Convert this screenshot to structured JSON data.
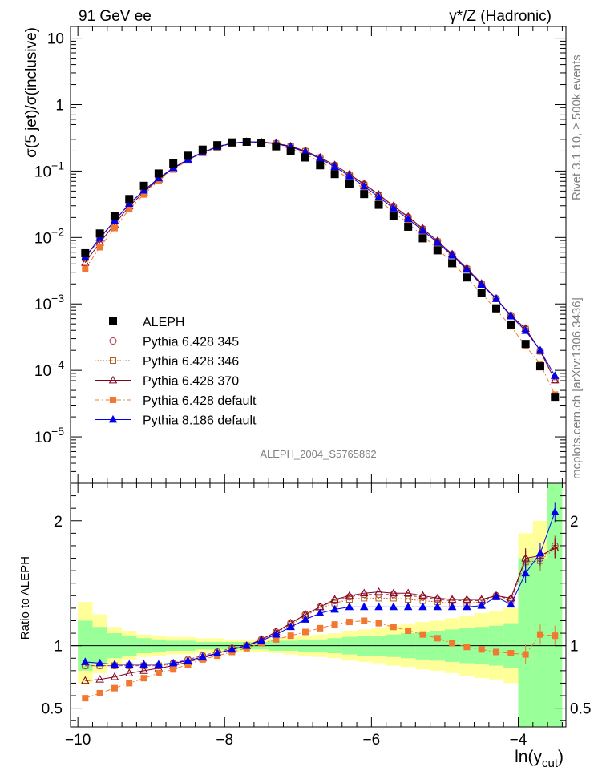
{
  "header": {
    "left_label": "91 GeV ee",
    "right_label": "γ*/Z (Hadronic)"
  },
  "side": {
    "rivet": "Rivet 3.1.10, ≥ 500k events",
    "mcplots": "mcplots.cern.ch [arXiv:1306.3436]"
  },
  "analysis_id": "ALEPH_2004_S5765862",
  "legend": [
    {
      "name": "ALEPH",
      "color": "#000000",
      "marker": "square-filled",
      "line": "none"
    },
    {
      "name": "Pythia 6.428 345",
      "color": "#b03040",
      "marker": "circle-open",
      "line": "dashed"
    },
    {
      "name": "Pythia 6.428 346",
      "color": "#b06020",
      "marker": "square-open",
      "line": "dotted"
    },
    {
      "name": "Pythia 6.428 370",
      "color": "#800020",
      "marker": "triangle-open",
      "line": "solid"
    },
    {
      "name": "Pythia 6.428 default",
      "color": "#f07830",
      "marker": "square-filled",
      "line": "dashdot"
    },
    {
      "name": "Pythia 8.186 default",
      "color": "#0000ee",
      "marker": "triangle-filled",
      "line": "solid"
    }
  ],
  "chart_data": {
    "type": "line",
    "xlabel": "ln(y",
    "xlabel_sub": "cut",
    "xlabel_close": ")",
    "ylabel_main": "σ(5 jet)/σ(inclusive)",
    "ylabel_ratio": "Ratio to ALEPH",
    "xlim": [
      -10.1,
      -3.35
    ],
    "ylim_main_log": [
      2e-06,
      15
    ],
    "ylim_ratio": [
      0.35,
      2.3
    ],
    "x_ticks": [
      -10,
      -8,
      -6,
      -4
    ],
    "x_tick_labels": [
      "−10",
      "−8",
      "−6",
      "−4"
    ],
    "main_y_ticks": [
      10,
      1,
      0.1,
      0.01,
      0.001,
      0.0001,
      1e-05
    ],
    "main_y_tick_labels": [
      {
        "base": "10",
        "exp": ""
      },
      {
        "base": "1",
        "exp": ""
      },
      {
        "base": "10",
        "exp": "−1"
      },
      {
        "base": "10",
        "exp": "−2"
      },
      {
        "base": "10",
        "exp": "−3"
      },
      {
        "base": "10",
        "exp": "−4"
      },
      {
        "base": "10",
        "exp": "−5"
      }
    ],
    "ratio_y_ticks": [
      0.5,
      1,
      2
    ],
    "ratio_y_tick_labels": [
      "0.5",
      "1",
      "2"
    ],
    "x": [
      -9.9,
      -9.7,
      -9.5,
      -9.3,
      -9.1,
      -8.9,
      -8.7,
      -8.5,
      -8.3,
      -8.1,
      -7.9,
      -7.7,
      -7.5,
      -7.3,
      -7.1,
      -6.9,
      -6.7,
      -6.5,
      -6.3,
      -6.1,
      -5.9,
      -5.7,
      -5.5,
      -5.3,
      -5.1,
      -4.9,
      -4.7,
      -4.5,
      -4.3,
      -4.1,
      -3.9,
      -3.7,
      -3.5
    ],
    "aleph": [
      0.0058,
      0.0115,
      0.021,
      0.038,
      0.06,
      0.092,
      0.13,
      0.17,
      0.21,
      0.245,
      0.27,
      0.275,
      0.26,
      0.235,
      0.2,
      0.16,
      0.122,
      0.09,
      0.064,
      0.045,
      0.031,
      0.021,
      0.0145,
      0.0097,
      0.0064,
      0.0041,
      0.0025,
      0.00148,
      0.00086,
      0.00049,
      0.00025,
      0.000115,
      4e-05
    ],
    "aleph_err_rel": [
      0.35,
      0.22,
      0.12,
      0.1,
      0.08,
      0.06,
      0.05,
      0.04,
      0.04,
      0.03,
      0.03,
      0.03,
      0.03,
      0.03,
      0.04,
      0.04,
      0.05,
      0.05,
      0.06,
      0.06,
      0.07,
      0.08,
      0.1,
      0.12,
      0.14,
      0.16,
      0.18,
      0.18,
      0.2,
      0.22,
      1.0,
      1.2,
      1.5
    ],
    "ratios": [
      {
        "name": "Pythia 6.428 345",
        "values": [
          0.84,
          0.84,
          0.84,
          0.84,
          0.84,
          0.84,
          0.86,
          0.89,
          0.92,
          0.95,
          0.98,
          1.0,
          1.05,
          1.11,
          1.18,
          1.25,
          1.31,
          1.36,
          1.39,
          1.41,
          1.41,
          1.41,
          1.4,
          1.39,
          1.37,
          1.36,
          1.36,
          1.36,
          1.4,
          1.37,
          1.69,
          1.7,
          1.8
        ]
      },
      {
        "name": "Pythia 6.428 346",
        "values": [
          0.84,
          0.84,
          0.84,
          0.84,
          0.84,
          0.84,
          0.85,
          0.88,
          0.91,
          0.94,
          0.97,
          1.0,
          1.04,
          1.1,
          1.17,
          1.24,
          1.3,
          1.34,
          1.37,
          1.38,
          1.38,
          1.38,
          1.37,
          1.36,
          1.35,
          1.34,
          1.34,
          1.35,
          1.39,
          1.36,
          1.67,
          1.68,
          1.78
        ]
      },
      {
        "name": "Pythia 6.428 370",
        "values": [
          0.72,
          0.73,
          0.75,
          0.78,
          0.8,
          0.82,
          0.84,
          0.87,
          0.9,
          0.94,
          0.97,
          1.0,
          1.05,
          1.11,
          1.18,
          1.25,
          1.31,
          1.37,
          1.4,
          1.42,
          1.43,
          1.42,
          1.42,
          1.4,
          1.38,
          1.37,
          1.37,
          1.37,
          1.4,
          1.38,
          1.7,
          1.72,
          1.78
        ]
      },
      {
        "name": "Pythia 6.428 default",
        "values": [
          0.58,
          0.62,
          0.66,
          0.7,
          0.74,
          0.78,
          0.81,
          0.85,
          0.89,
          0.92,
          0.95,
          0.98,
          1.02,
          1.05,
          1.08,
          1.11,
          1.14,
          1.17,
          1.19,
          1.2,
          1.18,
          1.15,
          1.12,
          1.09,
          1.06,
          1.02,
          0.99,
          0.97,
          0.95,
          0.94,
          0.93,
          1.09,
          1.08
        ]
      },
      {
        "name": "Pythia 8.186 default",
        "values": [
          0.87,
          0.86,
          0.85,
          0.85,
          0.85,
          0.85,
          0.86,
          0.88,
          0.91,
          0.94,
          0.97,
          1.0,
          1.04,
          1.09,
          1.15,
          1.21,
          1.26,
          1.29,
          1.31,
          1.31,
          1.31,
          1.31,
          1.31,
          1.31,
          1.31,
          1.31,
          1.31,
          1.32,
          1.39,
          1.33,
          1.58,
          1.74,
          2.07
        ]
      }
    ],
    "band_green": [
      [
        0.8,
        1.2
      ],
      [
        0.85,
        1.15
      ],
      [
        0.9,
        1.1
      ],
      [
        0.92,
        1.08
      ],
      [
        0.94,
        1.06
      ],
      [
        0.95,
        1.05
      ],
      [
        0.96,
        1.04
      ],
      [
        0.96,
        1.04
      ],
      [
        0.97,
        1.03
      ],
      [
        0.97,
        1.03
      ],
      [
        0.97,
        1.03
      ],
      [
        0.97,
        1.03
      ],
      [
        0.97,
        1.03
      ],
      [
        0.96,
        1.04
      ],
      [
        0.96,
        1.04
      ],
      [
        0.95,
        1.05
      ],
      [
        0.95,
        1.05
      ],
      [
        0.94,
        1.06
      ],
      [
        0.93,
        1.07
      ],
      [
        0.92,
        1.08
      ],
      [
        0.92,
        1.08
      ],
      [
        0.91,
        1.09
      ],
      [
        0.9,
        1.1
      ],
      [
        0.89,
        1.11
      ],
      [
        0.88,
        1.12
      ],
      [
        0.87,
        1.13
      ],
      [
        0.86,
        1.14
      ],
      [
        0.85,
        1.15
      ],
      [
        0.84,
        1.16
      ],
      [
        0.82,
        1.18
      ],
      [
        0.35,
        1.7
      ],
      [
        0.35,
        1.7
      ],
      [
        0.35,
        2.3
      ]
    ],
    "band_yellow": [
      [
        0.7,
        1.35
      ],
      [
        0.78,
        1.25
      ],
      [
        0.85,
        1.15
      ],
      [
        0.89,
        1.12
      ],
      [
        0.91,
        1.09
      ],
      [
        0.92,
        1.08
      ],
      [
        0.93,
        1.07
      ],
      [
        0.93,
        1.07
      ],
      [
        0.94,
        1.06
      ],
      [
        0.94,
        1.06
      ],
      [
        0.95,
        1.05
      ],
      [
        0.95,
        1.05
      ],
      [
        0.95,
        1.05
      ],
      [
        0.94,
        1.06
      ],
      [
        0.93,
        1.07
      ],
      [
        0.92,
        1.08
      ],
      [
        0.91,
        1.09
      ],
      [
        0.9,
        1.1
      ],
      [
        0.88,
        1.12
      ],
      [
        0.87,
        1.13
      ],
      [
        0.86,
        1.14
      ],
      [
        0.84,
        1.16
      ],
      [
        0.83,
        1.17
      ],
      [
        0.81,
        1.19
      ],
      [
        0.8,
        1.2
      ],
      [
        0.78,
        1.22
      ],
      [
        0.76,
        1.24
      ],
      [
        0.74,
        1.26
      ],
      [
        0.73,
        1.28
      ],
      [
        0.7,
        1.3
      ],
      [
        0.35,
        1.9
      ],
      [
        0.35,
        2.0
      ],
      [
        0.35,
        2.3
      ]
    ]
  },
  "colors": {
    "green_band": "#99ff99",
    "yellow_band": "#ffff99",
    "frame": "#000000"
  }
}
